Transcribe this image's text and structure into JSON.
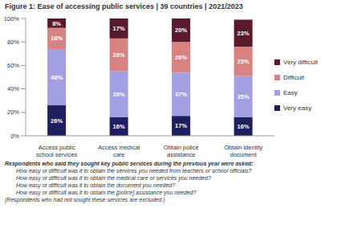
{
  "chart_data": {
    "type": "bar",
    "title": "Figure 1: Ease of accessing public services | 39 countries | 2021/2023",
    "categories": [
      "Access public school services",
      "Access medical care",
      "Obtain police assistance",
      "Obtain identity document"
    ],
    "series": [
      {
        "name": "Very easy",
        "color": "#1e1f5e",
        "values": [
          26,
          16,
          17,
          16
        ],
        "value_labels": [
          "26%",
          "16%",
          "17%",
          "16%"
        ]
      },
      {
        "name": "Easy",
        "color": "#a29fe2",
        "values": [
          48,
          39,
          37,
          35
        ],
        "value_labels": [
          "48%",
          "39%",
          "37%",
          "35%"
        ]
      },
      {
        "name": "Difficult",
        "color": "#d98282",
        "values": [
          18,
          28,
          26,
          25
        ],
        "value_labels": [
          "18%",
          "28%",
          "26%",
          "25%"
        ]
      },
      {
        "name": "Very difficult",
        "color": "#581a2c",
        "values": [
          8,
          17,
          20,
          23
        ],
        "value_labels": [
          "8%",
          "17%",
          "20%",
          "23%"
        ]
      }
    ],
    "ylim": [
      0,
      100
    ],
    "yticks": [
      {
        "value": 0,
        "label": "0%"
      },
      {
        "value": 20,
        "label": "20%"
      },
      {
        "value": 40,
        "label": "40%"
      },
      {
        "value": 60,
        "label": "60%"
      },
      {
        "value": 80,
        "label": "80%"
      },
      {
        "value": 100,
        "label": "100%"
      }
    ],
    "stacked": true,
    "data_labels": true,
    "legend": "right",
    "grid": false,
    "annotations": [
      "Respondents who said they sought key public services during the previous year were asked:",
      "How easy or difficult was it to obtain the services you needed from teachers or school officials?",
      "How easy or difficult was it to obtain the medical care or services you needed?",
      "How easy or difficult was it to obtain the document you needed?",
      "How easy or difficult was it to obtain the [police] assistance you needed?",
      "(Respondents who had not sought these services are excluded.)"
    ]
  }
}
